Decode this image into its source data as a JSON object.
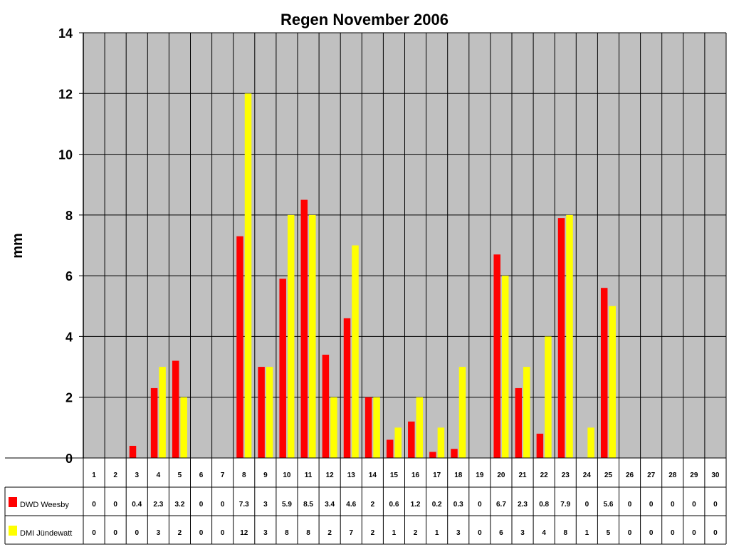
{
  "chart_data": {
    "type": "bar",
    "title": "Regen November 2006",
    "ylabel": "mm",
    "xlabel": "",
    "ylim": [
      0,
      14
    ],
    "yticks": [
      "0",
      "2",
      "4",
      "6",
      "8",
      "10",
      "12",
      "14"
    ],
    "grid": true,
    "legend": "table-left",
    "plot_background": "#c0c0c0",
    "categories": [
      "1",
      "2",
      "3",
      "4",
      "5",
      "6",
      "7",
      "8",
      "9",
      "10",
      "11",
      "12",
      "13",
      "14",
      "15",
      "16",
      "17",
      "18",
      "19",
      "20",
      "21",
      "22",
      "23",
      "24",
      "25",
      "26",
      "27",
      "28",
      "29",
      "30"
    ],
    "series": [
      {
        "name": "DWD Weesby",
        "color": "#ff0000",
        "values": [
          0,
          0,
          0.4,
          2.3,
          3.2,
          0,
          0,
          7.3,
          3,
          5.9,
          8.5,
          3.4,
          4.6,
          2,
          0.6,
          1.2,
          0.2,
          0.3,
          0,
          6.7,
          2.3,
          0.8,
          7.9,
          0,
          5.6,
          0,
          0,
          0,
          0,
          0
        ]
      },
      {
        "name": "DMI Jündewatt",
        "color": "#ffff00",
        "values": [
          0,
          0,
          0,
          3,
          2,
          0,
          0,
          12,
          3,
          8,
          8,
          2,
          7,
          2,
          1,
          2,
          1,
          3,
          0,
          6,
          3,
          4,
          8,
          1,
          5,
          0,
          0,
          0,
          0,
          0
        ]
      }
    ]
  }
}
